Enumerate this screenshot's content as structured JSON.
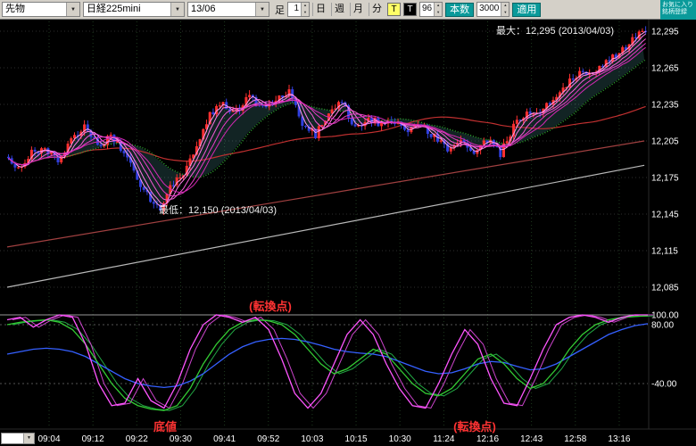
{
  "toolbar": {
    "category": "先物",
    "instrument": "日経225mini",
    "contract_month": "13/06",
    "interval_label": "足",
    "interval_value": "1",
    "interval_buttons": [
      "日",
      "週",
      "月",
      "分"
    ],
    "tick_label": "T",
    "tick2_label": "T",
    "period_value": "96",
    "bars_label": "本数",
    "bars_value": "3000",
    "apply_label": "適用",
    "corner_text": "お気に入り銘柄登録"
  },
  "chart": {
    "annotations": {
      "max_label": "最大：12,295 (2013/04/03)",
      "min_label": "最低：12,150 (2013/04/03)",
      "turning_point_top": "(転換点)",
      "bottom_label": "底値",
      "turning_point_bottom": "(転換点)"
    },
    "y_axis_labels": [
      "12,295",
      "12,265",
      "12,235",
      "12,205",
      "12,175",
      "12,145",
      "12,115",
      "12,085"
    ],
    "x_axis_labels": [
      "09:04",
      "09:12",
      "09:22",
      "09:30",
      "09:41",
      "09:52",
      "10:03",
      "10:15",
      "10:30",
      "11:24",
      "12:16",
      "12:43",
      "12:58",
      "13:16"
    ],
    "osc_axis_labels": [
      "100.00",
      "80.00",
      "-40.00"
    ]
  },
  "chart_data": {
    "type": "candlestick+oscillator",
    "title": "日経225mini 13/06 1分足",
    "price": {
      "seed": 7,
      "num_candles": 194,
      "axis": {
        "top_price": 12295,
        "price_step": 30,
        "grid_prices": [
          12295,
          12265,
          12235,
          12205,
          12175,
          12145,
          12115,
          12085
        ]
      },
      "session_high": 12295,
      "session_low": 12150,
      "anchors": [
        [
          0,
          12192
        ],
        [
          4,
          12180
        ],
        [
          8,
          12196
        ],
        [
          12,
          12200
        ],
        [
          16,
          12186
        ],
        [
          20,
          12206
        ],
        [
          24,
          12216
        ],
        [
          28,
          12200
        ],
        [
          32,
          12210
        ],
        [
          36,
          12194
        ],
        [
          40,
          12174
        ],
        [
          44,
          12156
        ],
        [
          47,
          12150
        ],
        [
          50,
          12166
        ],
        [
          54,
          12180
        ],
        [
          58,
          12200
        ],
        [
          62,
          12226
        ],
        [
          66,
          12236
        ],
        [
          70,
          12228
        ],
        [
          74,
          12246
        ],
        [
          78,
          12232
        ],
        [
          82,
          12238
        ],
        [
          86,
          12246
        ],
        [
          90,
          12220
        ],
        [
          94,
          12210
        ],
        [
          98,
          12226
        ],
        [
          102,
          12238
        ],
        [
          106,
          12216
        ],
        [
          110,
          12224
        ],
        [
          114,
          12218
        ],
        [
          118,
          12222
        ],
        [
          122,
          12214
        ],
        [
          126,
          12218
        ],
        [
          130,
          12208
        ],
        [
          134,
          12198
        ],
        [
          138,
          12206
        ],
        [
          142,
          12194
        ],
        [
          146,
          12206
        ],
        [
          150,
          12194
        ],
        [
          154,
          12216
        ],
        [
          158,
          12230
        ],
        [
          162,
          12228
        ],
        [
          166,
          12240
        ],
        [
          170,
          12252
        ],
        [
          174,
          12262
        ],
        [
          178,
          12258
        ],
        [
          182,
          12270
        ],
        [
          186,
          12278
        ],
        [
          190,
          12288
        ],
        [
          193,
          12295
        ]
      ]
    },
    "overlays": {
      "ribbon_periods": [
        3,
        5,
        8,
        11,
        14
      ],
      "ma_mid_period": 25,
      "ma_slow_period": 75,
      "trend_lines": [
        {
          "name": "long-ma-light",
          "from": [
            0,
            12085
          ],
          "to": [
            193,
            12185
          ],
          "color_key": "trend1"
        },
        {
          "name": "long-ma-dark",
          "from": [
            0,
            12118
          ],
          "to": [
            193,
            12205
          ],
          "color_key": "trend2"
        }
      ]
    },
    "oscillator": {
      "indicator": "RCI",
      "grid_values": [
        100,
        80,
        -40
      ],
      "range": [
        -100,
        100
      ],
      "series": [
        {
          "name": "rci-long",
          "color_key": "osc_long",
          "ghost": false,
          "values": [
            20,
            25,
            30,
            32,
            30,
            25,
            15,
            0,
            -15,
            -30,
            -40,
            -45,
            -48,
            -45,
            -35,
            -20,
            0,
            20,
            35,
            45,
            50,
            52,
            50,
            45,
            38,
            30,
            25,
            22,
            20,
            15,
            5,
            -5,
            -15,
            -20,
            -18,
            -10,
            0,
            5,
            3,
            -5,
            -12,
            -10,
            0,
            15,
            30,
            45,
            60,
            70,
            78,
            82
          ]
        },
        {
          "name": "rci-mid",
          "color_key": "osc_mid",
          "ghost": true,
          "values": [
            80,
            85,
            88,
            90,
            85,
            70,
            40,
            0,
            -40,
            -70,
            -85,
            -92,
            -95,
            -85,
            -50,
            0,
            40,
            70,
            85,
            90,
            88,
            80,
            60,
            30,
            0,
            -20,
            -10,
            10,
            30,
            20,
            -10,
            -40,
            -60,
            -65,
            -50,
            -20,
            10,
            20,
            0,
            -30,
            -50,
            -40,
            -10,
            30,
            60,
            80,
            90,
            95,
            97,
            98
          ]
        },
        {
          "name": "rci-short",
          "color_key": "osc_short",
          "ghost": true,
          "values": [
            90,
            95,
            75,
            90,
            100,
            95,
            40,
            -40,
            -85,
            -80,
            -30,
            -75,
            -90,
            -40,
            30,
            80,
            100,
            95,
            85,
            95,
            70,
            10,
            -60,
            -90,
            -60,
            0,
            60,
            90,
            60,
            0,
            -50,
            -85,
            -90,
            -40,
            20,
            70,
            40,
            -30,
            -80,
            -85,
            -30,
            30,
            80,
            95,
            100,
            95,
            85,
            95,
            100,
            100
          ]
        }
      ]
    }
  },
  "colors": {
    "toolbar_bg": "#d4d0c8",
    "chart_bg": "#000000",
    "candle_up": "#ff3030",
    "candle_down": "#3040e0",
    "grid_h": "#2e2e2e",
    "grid_v": "#1f3a1f",
    "axis_text": "#ffffff",
    "ribbon": [
      "#ff9bf0",
      "#ff7ae8",
      "#f75ad8",
      "#e93cc8",
      "#d428b4"
    ],
    "ma_mid": "#2fae2f",
    "ma_slow": "#c03030",
    "cloud": "rgba(110,225,225,0.16)",
    "trend1": "#b8b8b8",
    "trend2": "#a04040",
    "osc_short": "#ff55ff",
    "osc_short_ghost": "#cc44cc",
    "osc_mid": "#33cc33",
    "osc_mid_ghost": "#22aa44",
    "osc_long": "#3560ff",
    "annotation_red": "#ff3333",
    "annotation_white": "#f0f0f0",
    "accent_teal": "#0a9a9a",
    "tick_active_bg": "#ffff66"
  }
}
